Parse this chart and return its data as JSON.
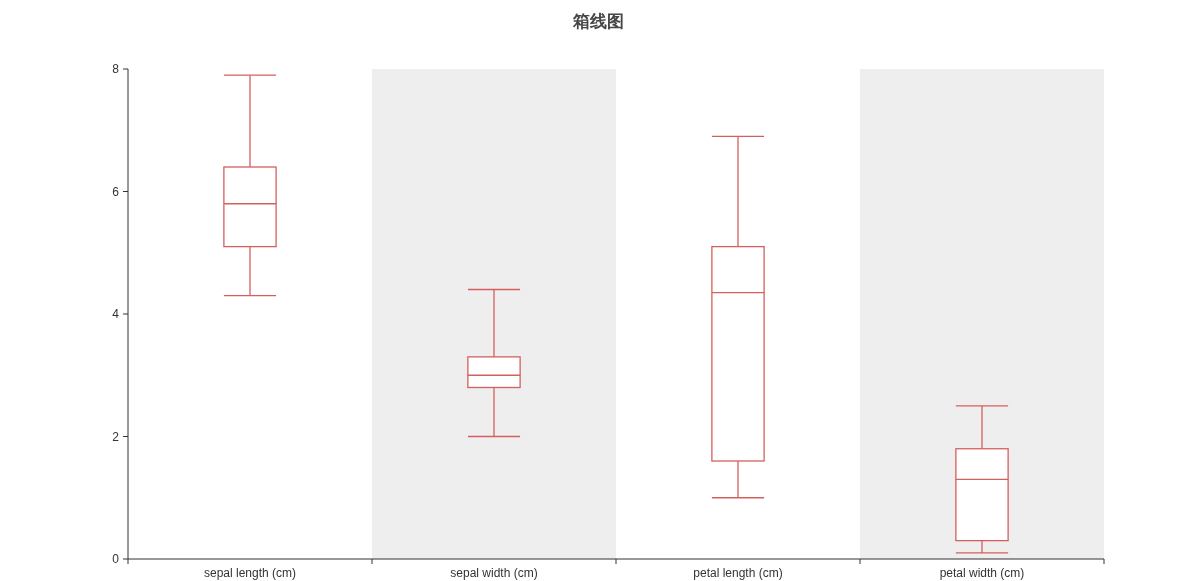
{
  "chart_data": {
    "type": "box",
    "title": "箱线图",
    "categories": [
      "sepal length (cm)",
      "sepal width (cm)",
      "petal length (cm)",
      "petal width (cm)"
    ],
    "boxes": [
      {
        "low": 4.3,
        "q1": 5.1,
        "median": 5.8,
        "q3": 6.4,
        "high": 7.9
      },
      {
        "low": 2.0,
        "q1": 2.8,
        "median": 3.0,
        "q3": 3.3,
        "high": 4.4
      },
      {
        "low": 1.0,
        "q1": 1.6,
        "median": 4.35,
        "q3": 5.1,
        "high": 6.9
      },
      {
        "low": 0.1,
        "q1": 0.3,
        "median": 1.3,
        "q3": 1.8,
        "high": 2.5
      }
    ],
    "color": "#d4605e",
    "ylim": [
      0,
      8
    ],
    "yticks": [
      0,
      2,
      4,
      6,
      8
    ],
    "bands": [
      {
        "axis": "x",
        "from": "sepal width (cm)",
        "to": "sepal width (cm)",
        "color": "#eeeeee"
      },
      {
        "axis": "x",
        "from": "petal width (cm)",
        "to": "petal width (cm)",
        "color": "#eeeeee"
      }
    ]
  }
}
